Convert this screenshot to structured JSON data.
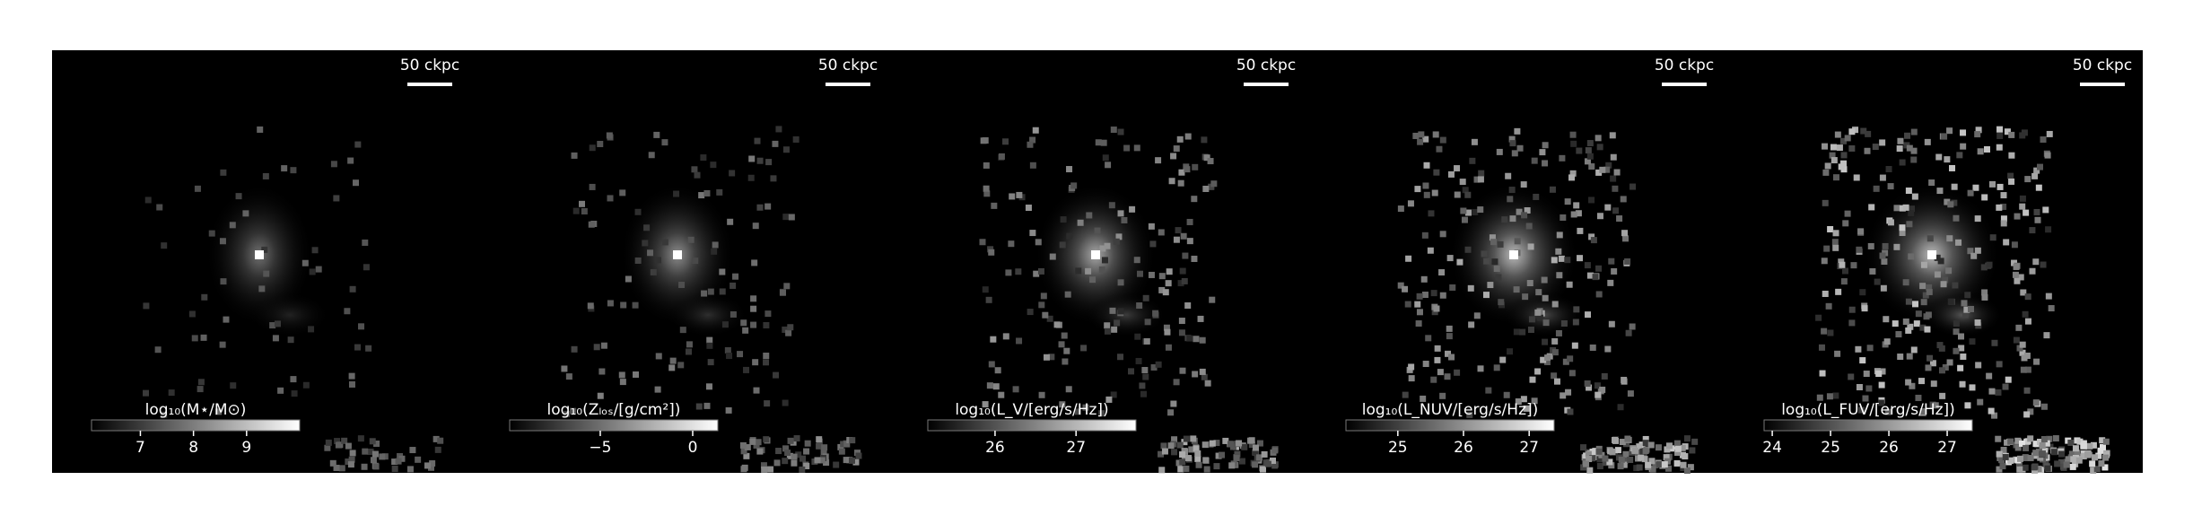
{
  "panels": [
    {
      "scalebar": "50 ckpc",
      "colorbar": {
        "label": "log₁₀(M⋆/M⊙)",
        "lim": [
          6.08,
          10
        ],
        "ticks": [
          7,
          8,
          9
        ]
      }
    },
    {
      "scalebar": "50 ckpc",
      "colorbar": {
        "label": "log₁₀(Zₗₒₛ/[g/cm²])",
        "lim": [
          -9.9,
          1.36
        ],
        "ticks": [
          {
            "value": -5,
            "label": "−5"
          },
          0
        ]
      }
    },
    {
      "scalebar": "50 ckpc",
      "colorbar": {
        "label": "log₁₀(L_V/[erg/s/Hz])",
        "lim": [
          25.17,
          27.74
        ],
        "ticks": [
          26,
          27
        ]
      }
    },
    {
      "scalebar": "50 ckpc",
      "colorbar": {
        "label": "log₁₀(L_NUV/[erg/s/Hz])",
        "lim": [
          24.21,
          27.38
        ],
        "ticks": [
          25,
          26,
          27
        ]
      }
    },
    {
      "scalebar": "50 ckpc",
      "colorbar": {
        "label": "log₁₀(L_FUV/[erg/s/Hz])",
        "lim": [
          23.86,
          27.43
        ],
        "ticks": [
          24,
          25,
          26,
          27
        ]
      }
    }
  ]
}
